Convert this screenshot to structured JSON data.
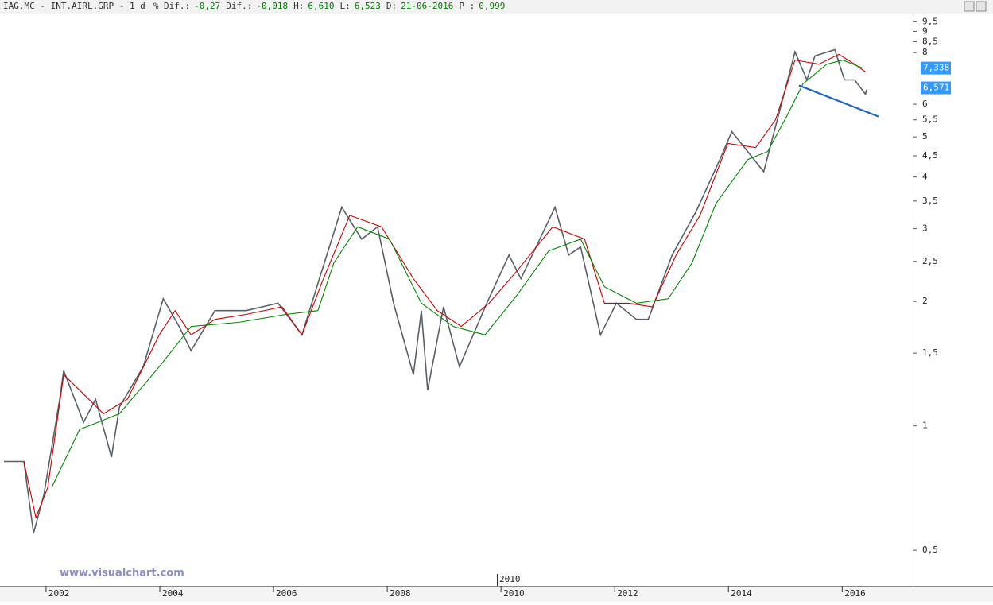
{
  "header": {
    "symbol": "IAG.MC - INT.AIRL.GRP -  1 d",
    "fields": [
      {
        "label": "% Dif.:",
        "value": "-0,27"
      },
      {
        "label": "Dif.:",
        "value": "-0,018"
      },
      {
        "label": "H:",
        "value": "6,610"
      },
      {
        "label": "L:",
        "value": "6,523"
      },
      {
        "label": "D:",
        "value": "21-06-2016"
      },
      {
        "label": "P :",
        "value": "0,999"
      }
    ]
  },
  "chart_data": {
    "type": "line",
    "log_scale": true,
    "watermark": "www.visualchart.com",
    "cursor_label": "2010",
    "xlim": [
      2001.19,
      2017.24
    ],
    "xticks": [
      2002,
      2004,
      2006,
      2008,
      2010,
      2012,
      2014,
      2016
    ],
    "ylim": [
      0.41,
      9.9
    ],
    "yticks": [
      {
        "value": 0.5,
        "label": "0,5"
      },
      1,
      {
        "value": 1.5,
        "label": "1,5"
      },
      2,
      {
        "value": 2.5,
        "label": "2,5"
      },
      3,
      {
        "value": 3.5,
        "label": "3,5"
      },
      4,
      {
        "value": 4.5,
        "label": "4,5"
      },
      5,
      {
        "value": 5.5,
        "label": "5,5"
      },
      6,
      8,
      {
        "value": 8.5,
        "label": "8,5"
      },
      9,
      {
        "value": 9.5,
        "label": "9,5"
      }
    ],
    "series": [
      {
        "color": "#5a6068",
        "x": [
          2001.26,
          2001.61,
          2001.78,
          2001.96,
          2002.24,
          2002.31,
          2002.66,
          2002.87,
          2003.15,
          2003.29,
          2003.71,
          2004.06,
          2004.34,
          2004.55,
          2004.97,
          2005.52,
          2006.08,
          2006.5,
          2006.85,
          2007.2,
          2007.55,
          2007.83,
          2008.11,
          2008.46,
          2008.6,
          2008.71,
          2008.99,
          2009.27,
          2009.75,
          2010.14,
          2010.35,
          2010.95,
          2011.19,
          2011.4,
          2011.75,
          2012.03,
          2012.38,
          2012.59,
          2013.01,
          2013.43,
          2013.85,
          2014.06,
          2014.45,
          2014.62,
          2014.97,
          2015.17,
          2015.38,
          2015.52,
          2015.87,
          2016.04,
          2016.22,
          2016.41,
          2016.43
        ],
        "values": [
          0.82,
          0.82,
          0.55,
          0.68,
          1.16,
          1.36,
          1.02,
          1.16,
          0.84,
          1.11,
          1.39,
          2.03,
          1.74,
          1.52,
          1.9,
          1.9,
          1.98,
          1.66,
          2.37,
          3.38,
          2.83,
          3.03,
          1.98,
          1.33,
          1.9,
          1.22,
          1.94,
          1.39,
          1.98,
          2.59,
          2.27,
          3.38,
          2.59,
          2.71,
          1.66,
          1.98,
          1.81,
          1.81,
          2.59,
          3.3,
          4.41,
          5.15,
          4.41,
          4.12,
          6.29,
          8.03,
          6.87,
          7.85,
          8.13,
          6.87,
          6.87,
          6.34,
          6.51
        ]
      },
      {
        "color": "#cc0000",
        "x": [
          2001.61,
          2001.82,
          2002.03,
          2002.31,
          2002.59,
          2003.01,
          2003.43,
          2003.99,
          2004.27,
          2004.55,
          2004.97,
          2005.52,
          2006.15,
          2006.5,
          2006.85,
          2007.34,
          2007.9,
          2008.46,
          2008.88,
          2009.3,
          2009.79,
          2010.28,
          2010.91,
          2011.47,
          2011.82,
          2012.24,
          2012.66,
          2013.08,
          2013.5,
          2013.99,
          2014.48,
          2014.83,
          2015.17,
          2015.59,
          2015.94,
          2016.22,
          2016.41
        ],
        "values": [
          0.82,
          0.6,
          0.71,
          1.33,
          1.22,
          1.07,
          1.16,
          1.66,
          1.9,
          1.66,
          1.81,
          1.86,
          1.94,
          1.66,
          2.22,
          3.23,
          3.03,
          2.27,
          1.9,
          1.74,
          1.98,
          2.37,
          3.03,
          2.83,
          1.98,
          1.98,
          1.94,
          2.59,
          3.23,
          4.82,
          4.71,
          5.51,
          7.67,
          7.5,
          7.92,
          7.5,
          7.18
        ]
      },
      {
        "color": "#008800",
        "x": [
          2002.1,
          2002.59,
          2003.29,
          2003.99,
          2004.55,
          2005.38,
          2006.22,
          2006.78,
          2007.06,
          2007.48,
          2008.04,
          2008.6,
          2009.16,
          2009.72,
          2010.28,
          2010.84,
          2011.4,
          2011.82,
          2012.38,
          2012.94,
          2013.36,
          2013.78,
          2014.34,
          2014.69,
          2015.03,
          2015.31,
          2015.73,
          2016.01,
          2016.36
        ],
        "values": [
          0.71,
          0.98,
          1.07,
          1.39,
          1.74,
          1.78,
          1.86,
          1.9,
          2.48,
          3.03,
          2.83,
          1.98,
          1.74,
          1.66,
          2.07,
          2.65,
          2.83,
          2.17,
          1.98,
          2.03,
          2.48,
          3.45,
          4.41,
          4.61,
          5.63,
          6.72,
          7.5,
          7.67,
          7.34
        ]
      }
    ],
    "trendline": {
      "color": "#1a66c8",
      "x": [
        2015.24,
        2016.64
      ],
      "y": [
        6.66,
        5.6
      ]
    },
    "last_labels": [
      {
        "value": 7.338,
        "label": "7,338"
      },
      {
        "value": 6.571,
        "label": "6,571"
      }
    ]
  }
}
